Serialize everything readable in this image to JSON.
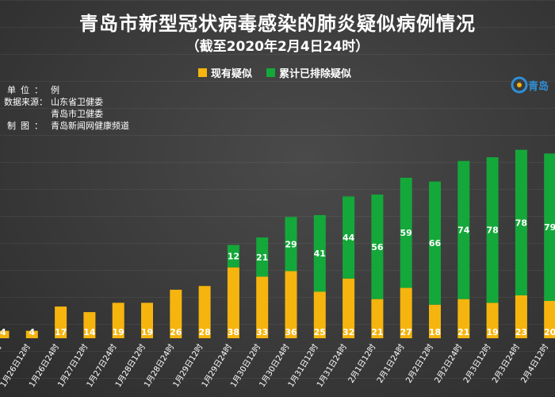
{
  "title": "青岛市新型冠状病毒感染的肺炎疑似病例情况",
  "subtitle": "（截至2020年2月4日24时）",
  "meta": {
    "unit_label": "单位：",
    "unit_value": "例",
    "source_label": "数据来源：",
    "source_values": [
      "山东省卫健委",
      "青岛市卫健委"
    ],
    "maker_label": "制图：",
    "maker_value": "青岛新闻网健康频道"
  },
  "logo_text": "青岛",
  "colors": {
    "current": "#f5b50e",
    "excluded": "#14a83a",
    "background": "#3a3a3a"
  },
  "chart_data": {
    "type": "bar",
    "stacked": true,
    "categories": [
      "时",
      "1月26日12时",
      "1月26日24时",
      "1月27日12时",
      "1月27日24时",
      "1月28日12时",
      "1月28日24时",
      "1月29日12时",
      "1月29日24时",
      "1月30日12时",
      "1月30日24时",
      "1月31日12时",
      "1月31日24时",
      "2月1日12时",
      "2月1日24时",
      "2月2日12时",
      "2月2日24时",
      "2月3日12时",
      "2月3日24时",
      "2月4日12时"
    ],
    "series": [
      {
        "name": "现有疑似",
        "values": [
          4,
          4,
          17,
          14,
          19,
          19,
          26,
          28,
          38,
          33,
          36,
          25,
          32,
          21,
          27,
          18,
          21,
          19,
          23,
          20
        ]
      },
      {
        "name": "累计已排除疑似",
        "values": [
          0,
          0,
          0,
          0,
          0,
          0,
          0,
          0,
          12,
          21,
          29,
          41,
          44,
          56,
          59,
          66,
          74,
          78,
          78,
          79
        ]
      }
    ],
    "label_texts": {
      "current": [
        "4",
        "4",
        "17",
        "14",
        "19",
        "19",
        "26",
        "28",
        "38",
        "33",
        "36",
        "25",
        "32",
        "21",
        "27",
        "18",
        "21",
        "19",
        "23",
        "20"
      ],
      "excluded": [
        "",
        "",
        "",
        "",
        "",
        "",
        "",
        "",
        "12",
        "21",
        "29",
        "41",
        "44",
        "56",
        "59",
        "66",
        "74",
        "78",
        "78",
        "79"
      ]
    },
    "ylim": [
      0,
      110
    ],
    "grid": true,
    "legend_position": "top"
  }
}
